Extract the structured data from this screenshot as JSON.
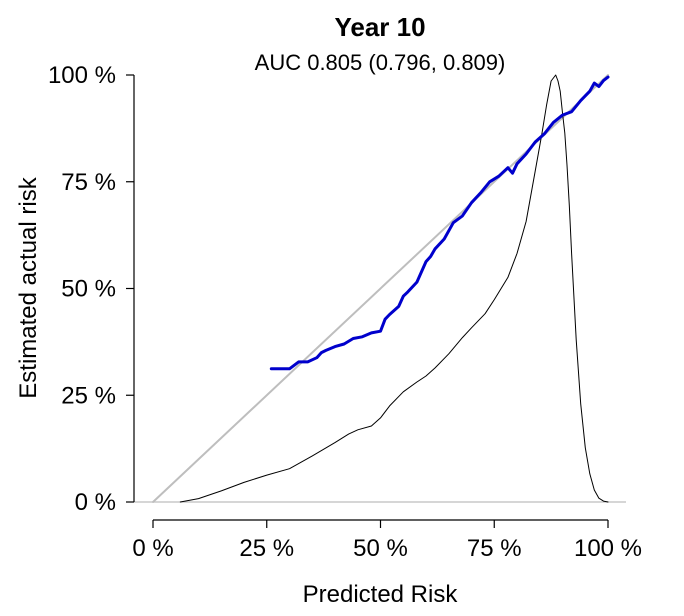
{
  "chart_data": {
    "type": "line",
    "title": "Year 10",
    "subtitle": "AUC 0.805 (0.796, 0.809)",
    "xlabel": "Predicted Risk",
    "ylabel": "Estimated actual risk",
    "xlim": [
      0,
      100
    ],
    "ylim": [
      0,
      100
    ],
    "x_ticks": [
      "0 %",
      "25 %",
      "50 %",
      "75 %",
      "100 %"
    ],
    "y_ticks": [
      "0 %",
      "25 %",
      "50 %",
      "75 %",
      "100 %"
    ],
    "grid": false,
    "legend": "none",
    "colors": {
      "calibration": "#0000cc",
      "reference": "#bebebe",
      "density": "#000000",
      "baseline": "#bebebe"
    },
    "series": [
      {
        "key": "reference",
        "style": "identity-line",
        "x": [
          0,
          100
        ],
        "y": [
          0,
          100
        ]
      },
      {
        "key": "density",
        "style": "thin-line",
        "x": [
          6,
          10,
          15,
          20,
          25,
          30,
          35,
          40,
          43,
          45,
          48,
          50,
          52,
          55,
          58,
          60,
          62,
          65,
          68,
          70,
          73,
          75,
          78,
          80,
          82,
          84,
          85.5,
          86.5,
          87.5,
          88.5,
          89,
          89.5,
          90,
          90.5,
          91,
          91.5,
          92,
          93,
          94,
          95,
          96,
          97,
          98,
          99,
          100
        ],
        "y": [
          0,
          0.8,
          2.6,
          4.6,
          6.3,
          7.8,
          10.8,
          13.9,
          15.9,
          16.9,
          17.8,
          19.7,
          22.5,
          25.8,
          28.1,
          29.5,
          31.4,
          34.7,
          38.5,
          40.8,
          44.1,
          47.4,
          52.6,
          58.2,
          65.7,
          77.5,
          86.4,
          93.0,
          98.6,
          100,
          98.6,
          96.2,
          91.1,
          86.4,
          78.9,
          69.5,
          58.2,
          38.0,
          23.0,
          12.7,
          6.6,
          2.8,
          0.9,
          0.2,
          0
        ]
      },
      {
        "key": "calibration",
        "style": "thick-line",
        "x": [
          26,
          30,
          32,
          34,
          36,
          37,
          38,
          40,
          42,
          44,
          46,
          48,
          50,
          51,
          52,
          54,
          55,
          56,
          58,
          60,
          61,
          62,
          64,
          66,
          68,
          70,
          72,
          74,
          76,
          78,
          79,
          80,
          82,
          84,
          86,
          88,
          90,
          92,
          94,
          96,
          97,
          98,
          99,
          100
        ],
        "y": [
          31.2,
          31.2,
          32.8,
          32.8,
          33.8,
          35.0,
          35.5,
          36.4,
          37.0,
          38.3,
          38.7,
          39.6,
          40.0,
          42.8,
          43.9,
          45.8,
          48.2,
          49.2,
          51.5,
          56.3,
          57.5,
          59.3,
          61.6,
          65.4,
          67.0,
          70.1,
          72.4,
          75.0,
          76.3,
          78.3,
          77.0,
          79.2,
          81.5,
          84.3,
          86.2,
          88.9,
          90.6,
          91.4,
          94.0,
          96.2,
          98.1,
          97.3,
          98.7,
          99.5
        ]
      }
    ]
  }
}
